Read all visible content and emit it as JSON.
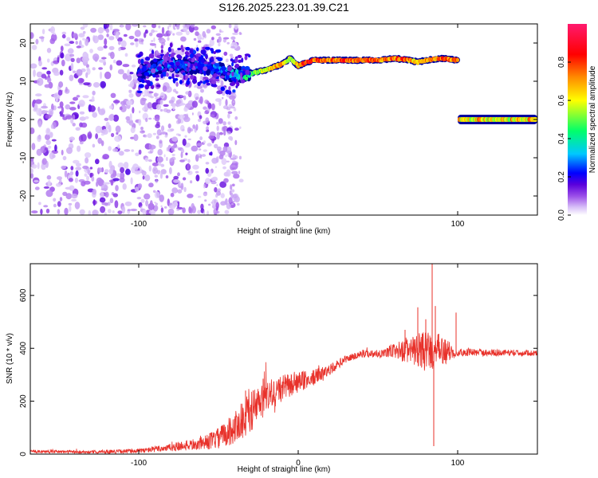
{
  "title": "S126.2025.223.01.39.C21",
  "chart_data": [
    {
      "type": "heatmap",
      "title": "S126.2025.223.01.39.C21",
      "xlabel": "Height of straight line (km)",
      "ylabel": "Frequency (Hz)",
      "xlim": [
        -168,
        150
      ],
      "ylim": [
        -25,
        25
      ],
      "x_ticks": [
        -100,
        0,
        100
      ],
      "y_ticks": [
        -20,
        -10,
        0,
        10,
        20
      ],
      "colorbar": {
        "label": "Normalized spectral amplitude",
        "range": [
          0,
          1
        ],
        "ticks": [
          "0.0",
          "0.2",
          "0.4",
          "0.6",
          "0.8"
        ],
        "tick_values": [
          0.0,
          0.2,
          0.4,
          0.6,
          0.8
        ],
        "colormap": [
          "#ffffff",
          "#c8a6f5",
          "#8f3fe6",
          "#5a00dc",
          "#0000ff",
          "#00c8ff",
          "#00ff6a",
          "#ffff00",
          "#ff6a00",
          "#ff0040",
          "#ff1a6e"
        ]
      },
      "ridge": {
        "x": [
          -100,
          -90,
          -80,
          -70,
          -60,
          -50,
          -40,
          -30,
          -20,
          -10,
          -5,
          0,
          5,
          10,
          20,
          30,
          40,
          50,
          60,
          70,
          75,
          80,
          90,
          100
        ],
        "freq": [
          12,
          13.5,
          14.5,
          14,
          14,
          13,
          11.5,
          12,
          13,
          14.5,
          16,
          14,
          15,
          15.5,
          15.5,
          15.5,
          15.5,
          15.5,
          16,
          15.5,
          15,
          15.5,
          16,
          15.5
        ],
        "amplitude": [
          0.25,
          0.3,
          0.3,
          0.3,
          0.25,
          0.3,
          0.35,
          0.5,
          0.65,
          0.85,
          0.6,
          0.7,
          0.9,
          0.85,
          0.8,
          0.85,
          0.85,
          0.8,
          0.85,
          0.8,
          0.7,
          0.8,
          0.85,
          0.8
        ]
      },
      "band2": {
        "x_range": [
          100,
          150
        ],
        "freq": 0,
        "amplitude": 0.8
      }
    },
    {
      "type": "line",
      "xlabel": "Height of straight line (km)",
      "ylabel": "SNR (10 * v/v)",
      "xlim": [
        -168,
        150
      ],
      "ylim": [
        0,
        720
      ],
      "x_ticks": [
        -100,
        0,
        100
      ],
      "y_ticks": [
        0,
        200,
        400,
        600
      ],
      "color": "#e8312a",
      "envelope": {
        "x": [
          -168,
          -130,
          -100,
          -80,
          -60,
          -50,
          -40,
          -30,
          -20,
          -10,
          0,
          10,
          20,
          30,
          40,
          50,
          60,
          70,
          80,
          90,
          100,
          150
        ],
        "base": [
          10,
          8,
          12,
          25,
          40,
          60,
          100,
          160,
          210,
          250,
          270,
          290,
          320,
          360,
          380,
          380,
          390,
          390,
          390,
          390,
          385,
          382
        ],
        "amp": [
          6,
          6,
          8,
          15,
          25,
          40,
          60,
          80,
          70,
          50,
          40,
          30,
          20,
          15,
          15,
          15,
          30,
          50,
          80,
          60,
          15,
          10
        ]
      },
      "spikes": [
        {
          "x": -41,
          "y": 40
        },
        {
          "x": -33,
          "y": 240
        },
        {
          "x": -22,
          "y": 285
        },
        {
          "x": 67,
          "y": 470
        },
        {
          "x": 75,
          "y": 555
        },
        {
          "x": 80,
          "y": 510
        },
        {
          "x": 84,
          "y": 720
        },
        {
          "x": 85,
          "y": 30
        },
        {
          "x": 86,
          "y": 560
        },
        {
          "x": 99,
          "y": 535
        }
      ]
    }
  ]
}
